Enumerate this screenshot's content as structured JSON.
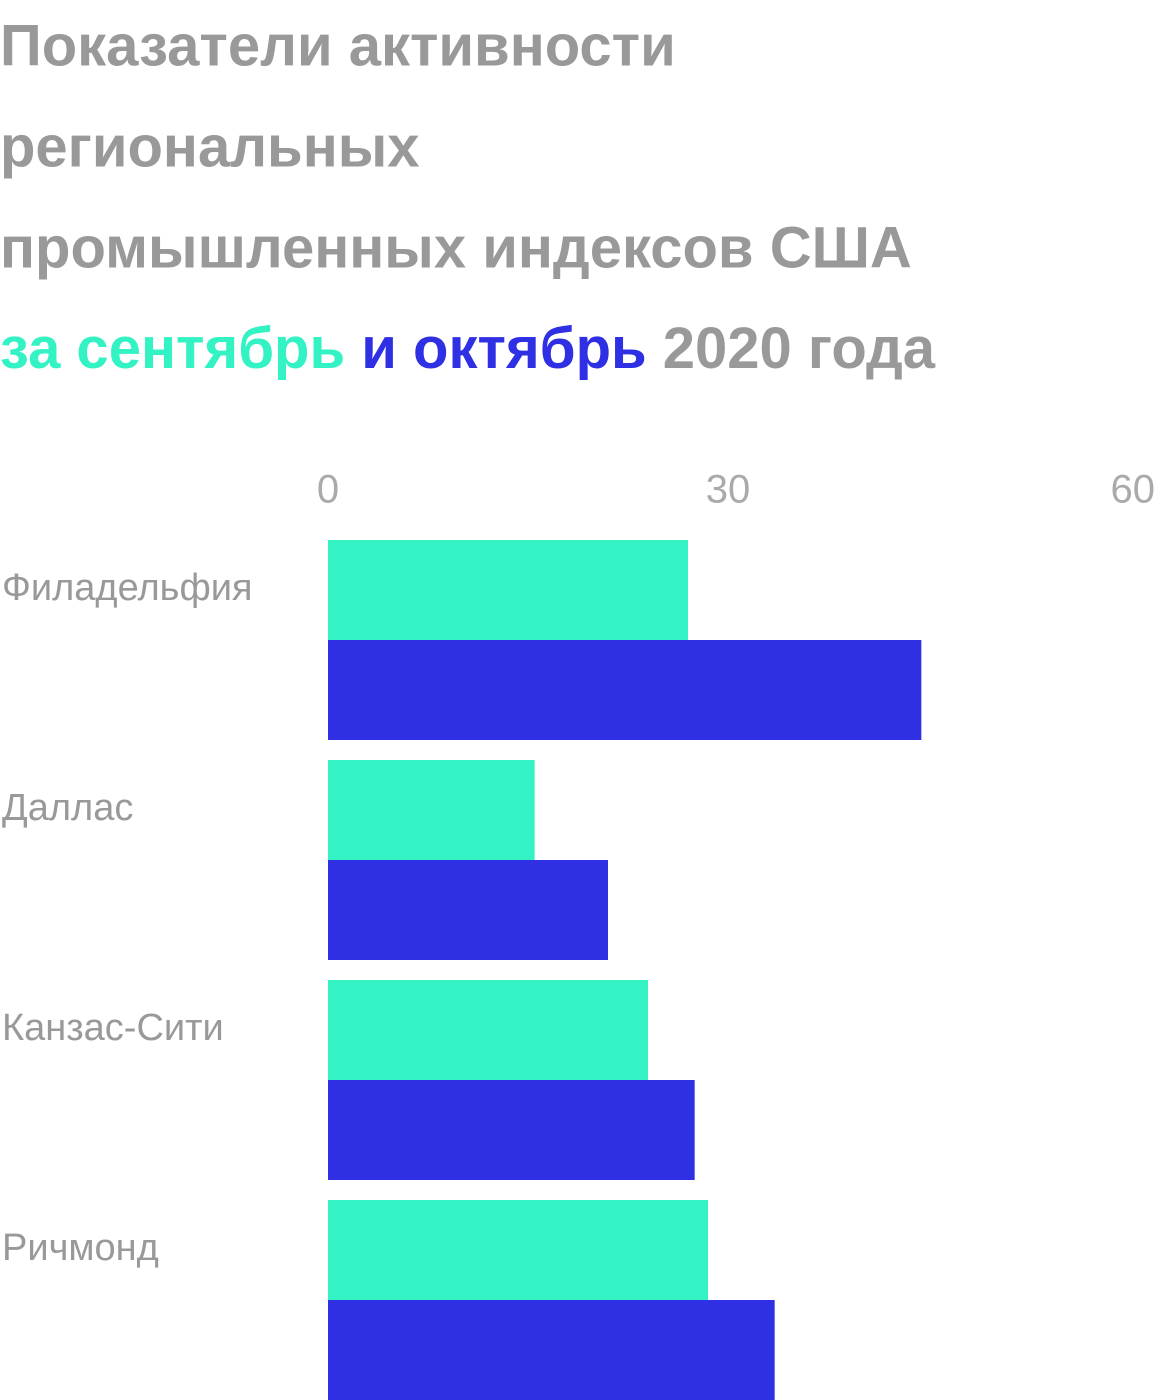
{
  "chart_data": {
    "type": "hbar",
    "title": [
      "Показатели активности",
      "региональных",
      "промышленных индексов США"
    ],
    "subtitle": "2020 года",
    "categories": [
      "Филадельфия",
      "Даллас",
      "Канзас-Сити",
      "Ричмонд"
    ],
    "series": [
      {
        "name": "за сентябрь",
        "color": "#33f3c4",
        "values": [
          27,
          15.5,
          24,
          28.5
        ]
      },
      {
        "name": "и октябрь",
        "color": "#2f2fe3",
        "values": [
          44.5,
          21,
          27.5,
          33.5
        ]
      }
    ],
    "xlim": [
      0,
      60
    ],
    "xticks": [
      0,
      30,
      60
    ],
    "grid": false
  }
}
